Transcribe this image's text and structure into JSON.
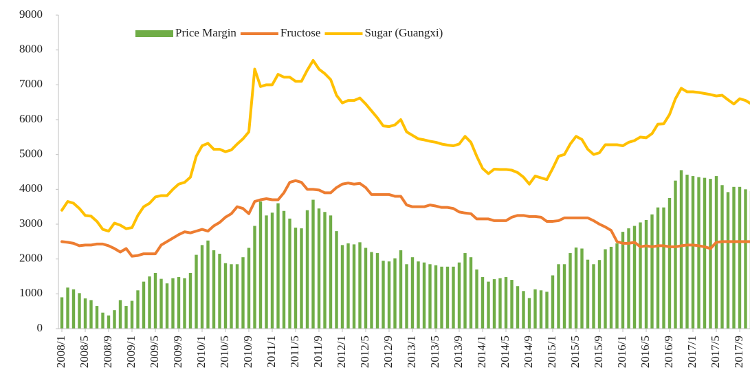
{
  "chart_data": {
    "type": "bar-line",
    "categories": [
      "2008/1",
      null,
      null,
      null,
      "2008/5",
      null,
      null,
      null,
      "2008/9",
      null,
      null,
      null,
      "2009/1",
      null,
      null,
      null,
      "2009/5",
      null,
      null,
      null,
      "2009/9",
      null,
      null,
      null,
      "2010/1",
      null,
      null,
      null,
      "2010/5",
      null,
      null,
      null,
      "2010/9",
      null,
      null,
      null,
      "2011/1",
      null,
      null,
      null,
      "2011/5",
      null,
      null,
      null,
      "2011/9",
      null,
      null,
      null,
      "2012/1",
      null,
      null,
      null,
      "2012/5",
      null,
      null,
      null,
      "2012/9",
      null,
      null,
      null,
      "2013/1",
      null,
      null,
      null,
      "2013/5",
      null,
      null,
      null,
      "2013/9",
      null,
      null,
      null,
      "2014/1",
      null,
      null,
      null,
      "2014/5",
      null,
      null,
      null,
      "2014/9",
      null,
      null,
      null,
      "2015/1",
      null,
      null,
      null,
      "2015/5",
      null,
      null,
      null,
      "2015/9",
      null,
      null,
      null,
      "2016/1",
      null,
      null,
      null,
      "2016/5",
      null,
      null,
      null,
      "2016/9",
      null,
      null,
      null,
      "2017/1",
      null,
      null,
      null,
      "2017/5",
      null,
      null,
      null,
      "2017/9",
      null,
      null
    ],
    "series": [
      {
        "name": "Price Margin",
        "kind": "bar",
        "color": "#70ad47",
        "values": [
          900,
          1180,
          1130,
          1020,
          870,
          820,
          650,
          460,
          380,
          530,
          820,
          650,
          800,
          1100,
          1350,
          1500,
          1600,
          1430,
          1300,
          1450,
          1480,
          1450,
          1600,
          2120,
          2400,
          2530,
          2250,
          2150,
          1880,
          1850,
          1850,
          2050,
          2320,
          2950,
          3650,
          3250,
          3330,
          3600,
          3380,
          3160,
          2900,
          2880,
          3400,
          3700,
          3450,
          3350,
          3250,
          2800,
          2400,
          2450,
          2420,
          2480,
          2320,
          2200,
          2170,
          1950,
          1930,
          2020,
          2250,
          1850,
          2050,
          1930,
          1900,
          1850,
          1820,
          1780,
          1780,
          1780,
          1900,
          2170,
          2050,
          1700,
          1480,
          1350,
          1420,
          1450,
          1480,
          1400,
          1220,
          1080,
          880,
          1130,
          1100,
          1060,
          1530,
          1850,
          1850,
          2170,
          2330,
          2300,
          1980,
          1850,
          1970,
          2280,
          2350,
          2450,
          2780,
          2880,
          2950,
          3050,
          3120,
          3280,
          3480,
          3480,
          3750,
          4250,
          4550,
          4420,
          4380,
          4350,
          4330,
          4300,
          4380,
          4120,
          3920,
          4070,
          4070,
          4000,
          3950
        ]
      },
      {
        "name": "Fructose",
        "kind": "line",
        "color": "#ed7d31",
        "values": [
          2500,
          2480,
          2450,
          2380,
          2400,
          2400,
          2430,
          2430,
          2380,
          2300,
          2200,
          2300,
          2080,
          2100,
          2150,
          2150,
          2150,
          2400,
          2500,
          2600,
          2700,
          2780,
          2750,
          2800,
          2850,
          2800,
          2950,
          3050,
          3200,
          3300,
          3500,
          3450,
          3300,
          3650,
          3700,
          3730,
          3700,
          3700,
          3900,
          4200,
          4250,
          4200,
          4000,
          4000,
          3980,
          3900,
          3900,
          4050,
          4150,
          4180,
          4150,
          4170,
          4050,
          3850,
          3850,
          3850,
          3850,
          3800,
          3800,
          3550,
          3500,
          3500,
          3500,
          3550,
          3520,
          3480,
          3480,
          3450,
          3350,
          3320,
          3300,
          3150,
          3150,
          3150,
          3100,
          3100,
          3100,
          3200,
          3250,
          3250,
          3220,
          3220,
          3200,
          3080,
          3080,
          3100,
          3180,
          3180,
          3180,
          3180,
          3180,
          3100,
          3000,
          2920,
          2820,
          2500,
          2450,
          2450,
          2480,
          2350,
          2380,
          2350,
          2380,
          2380,
          2350,
          2350,
          2380,
          2400,
          2400,
          2380,
          2350,
          2300,
          2480,
          2500,
          2500,
          2500,
          2500,
          2500,
          2500
        ]
      },
      {
        "name": "Sugar (Guangxi)",
        "kind": "line",
        "color": "#ffc000",
        "values": [
          3400,
          3650,
          3600,
          3450,
          3250,
          3230,
          3080,
          2850,
          2800,
          3030,
          2970,
          2870,
          2900,
          3250,
          3500,
          3600,
          3780,
          3820,
          3820,
          4000,
          4150,
          4200,
          4350,
          4950,
          5250,
          5320,
          5150,
          5150,
          5080,
          5130,
          5300,
          5450,
          5650,
          7450,
          6950,
          7000,
          7000,
          7300,
          7220,
          7220,
          7100,
          7100,
          7420,
          7700,
          7450,
          7320,
          7150,
          6700,
          6480,
          6550,
          6550,
          6620,
          6450,
          6250,
          6050,
          5820,
          5800,
          5850,
          6000,
          5650,
          5550,
          5450,
          5420,
          5380,
          5350,
          5300,
          5270,
          5250,
          5300,
          5520,
          5350,
          4950,
          4600,
          4450,
          4580,
          4570,
          4570,
          4550,
          4480,
          4350,
          4150,
          4380,
          4330,
          4280,
          4600,
          4950,
          5000,
          5300,
          5520,
          5430,
          5150,
          5000,
          5050,
          5280,
          5280,
          5280,
          5250,
          5350,
          5400,
          5500,
          5480,
          5600,
          5870,
          5880,
          6150,
          6600,
          6900,
          6800,
          6800,
          6780,
          6750,
          6720,
          6680,
          6700,
          6570,
          6450,
          6600,
          6550,
          6450
        ]
      }
    ],
    "ylim": [
      0,
      9000
    ],
    "yticks": [
      0,
      1000,
      2000,
      3000,
      4000,
      5000,
      6000,
      7000,
      8000,
      9000
    ],
    "grid": false,
    "legend": "top"
  }
}
